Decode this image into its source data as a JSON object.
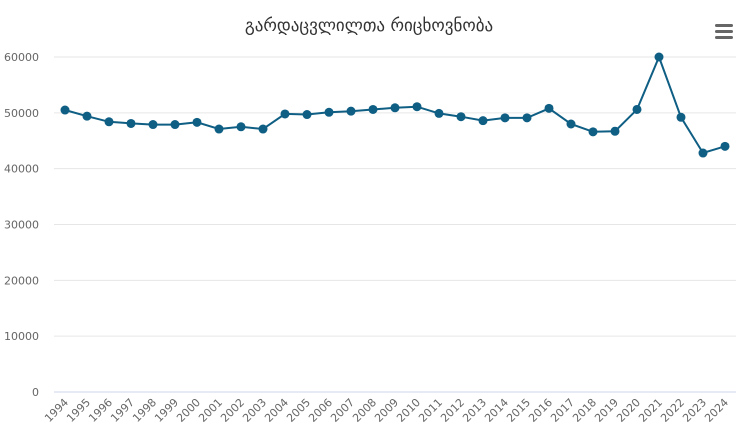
{
  "colors": {
    "series": "#0f5e84",
    "menu": "#666666"
  },
  "menu_icon": "hamburger-menu-icon",
  "chart_data": {
    "type": "line",
    "title": "გარდაცვლილთა რიცხოვნობა",
    "xlabel": "",
    "ylabel": "",
    "ylim": [
      0,
      60000
    ],
    "yticks": [
      "0",
      "10000",
      "20000",
      "30000",
      "40000",
      "50000",
      "60000"
    ],
    "grid": true,
    "legend": "none",
    "categories": [
      "1994",
      "1995",
      "1996",
      "1997",
      "1998",
      "1999",
      "2000",
      "2001",
      "2002",
      "2003",
      "2004",
      "2005",
      "2006",
      "2007",
      "2008",
      "2009",
      "2010",
      "2011",
      "2012",
      "2013",
      "2014",
      "2015",
      "2016",
      "2017",
      "2018",
      "2019",
      "2020",
      "2021",
      "2022",
      "2023",
      "2024"
    ],
    "series": [
      {
        "values": [
          50500,
          49400,
          48400,
          48100,
          47900,
          47900,
          48300,
          47100,
          47500,
          47100,
          49800,
          49700,
          50100,
          50300,
          50600,
          50900,
          51100,
          49900,
          49300,
          48600,
          49100,
          49100,
          50800,
          48000,
          46600,
          46700,
          50600,
          60000,
          49200,
          42800,
          44000
        ]
      }
    ]
  }
}
